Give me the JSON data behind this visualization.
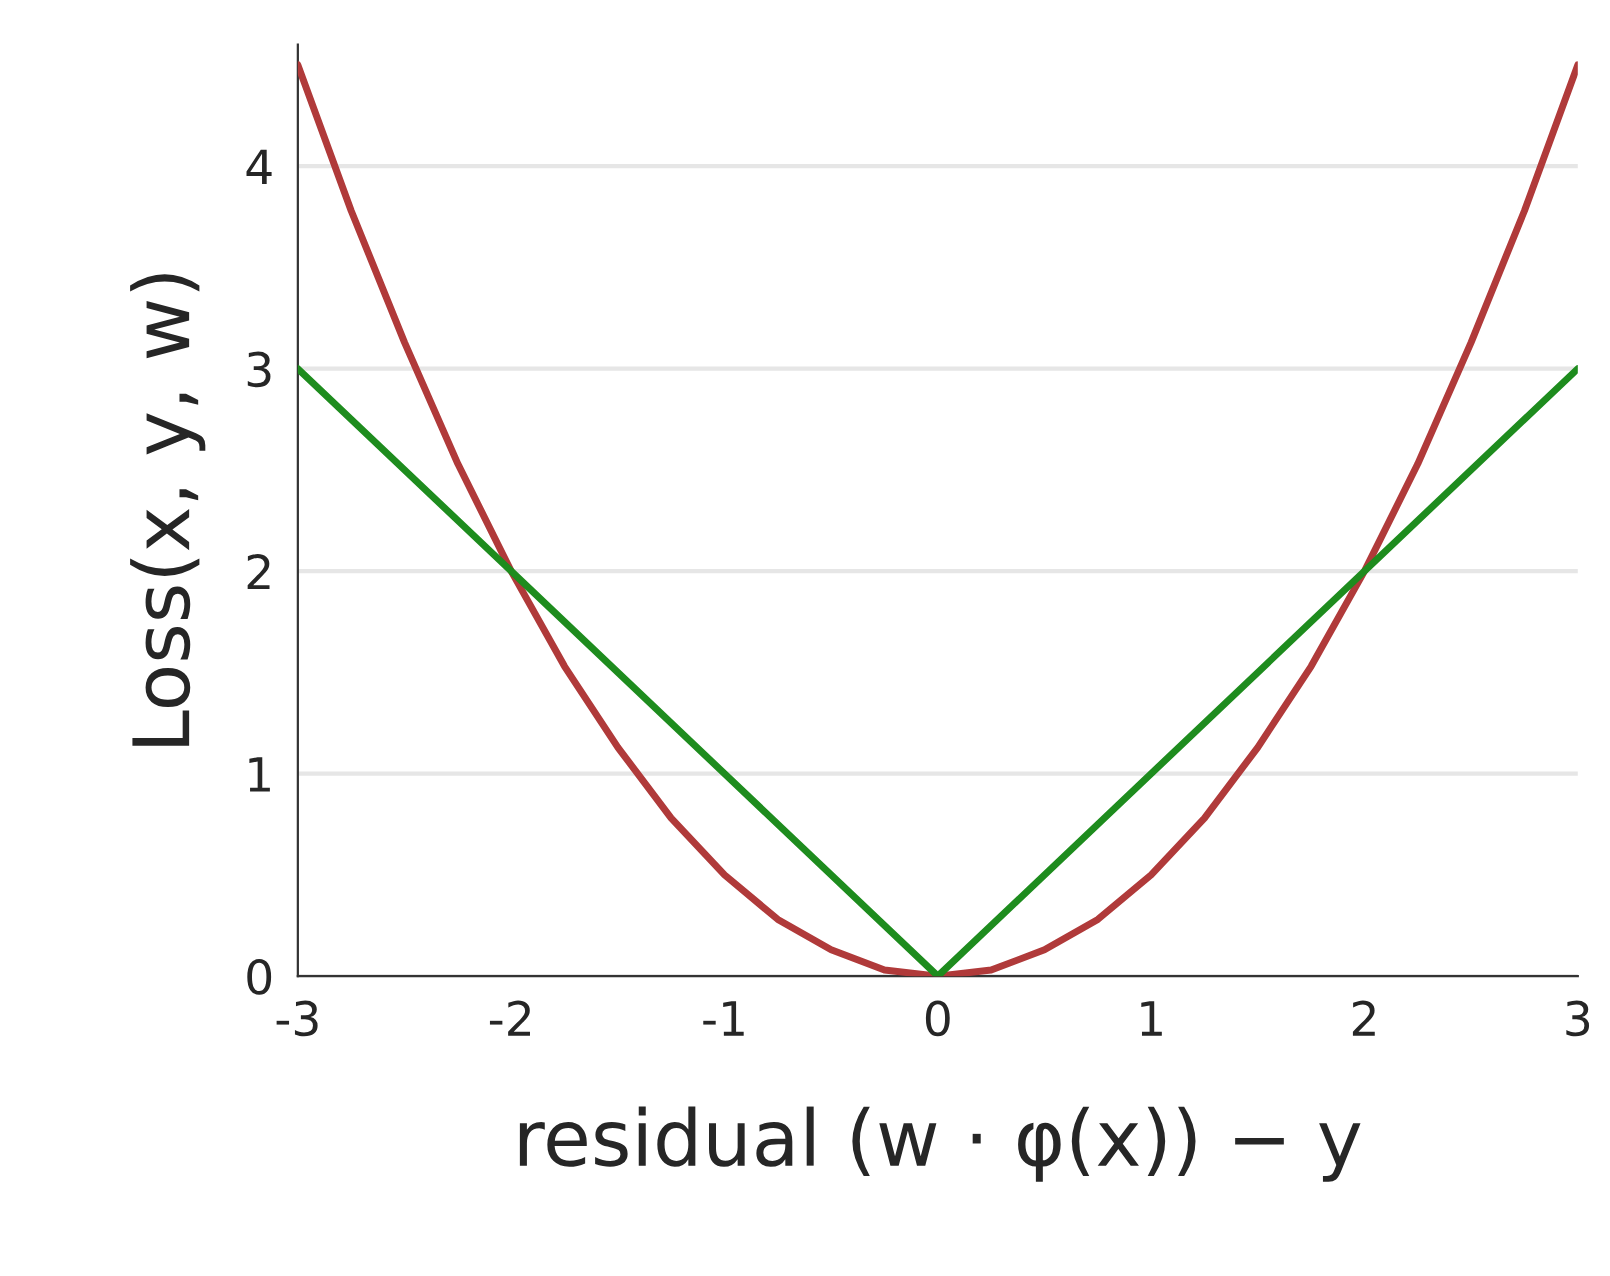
{
  "chart_data": {
    "type": "line",
    "xlabel": "residual (w · φ(x)) − y",
    "ylabel": "Loss(x, y, w)",
    "series": [
      {
        "color": "#b03a3a",
        "x": [
          -3,
          -2.75,
          -2.5,
          -2.25,
          -2,
          -1.75,
          -1.5,
          -1.25,
          -1,
          -0.75,
          -0.5,
          -0.25,
          0,
          0.25,
          0.5,
          0.75,
          1,
          1.25,
          1.5,
          1.75,
          2,
          2.25,
          2.5,
          2.75,
          3
        ],
        "values": [
          4.5,
          3.78,
          3.13,
          2.53,
          2,
          1.53,
          1.13,
          0.78,
          0.5,
          0.28,
          0.13,
          0.03,
          0,
          0.03,
          0.13,
          0.28,
          0.5,
          0.78,
          1.13,
          1.53,
          2,
          2.53,
          3.13,
          3.78,
          4.5
        ]
      },
      {
        "color": "#1e8c1e",
        "x": [
          -3,
          0,
          3
        ],
        "values": [
          3,
          0,
          3
        ]
      }
    ],
    "xlim": [
      -3,
      3
    ],
    "ylim": [
      0,
      4.6
    ],
    "xticks": [
      -3,
      -2,
      -1,
      0,
      1,
      2,
      3
    ],
    "yticks": [
      0,
      1,
      2,
      3,
      4
    ],
    "grid": "y",
    "legend": false
  }
}
